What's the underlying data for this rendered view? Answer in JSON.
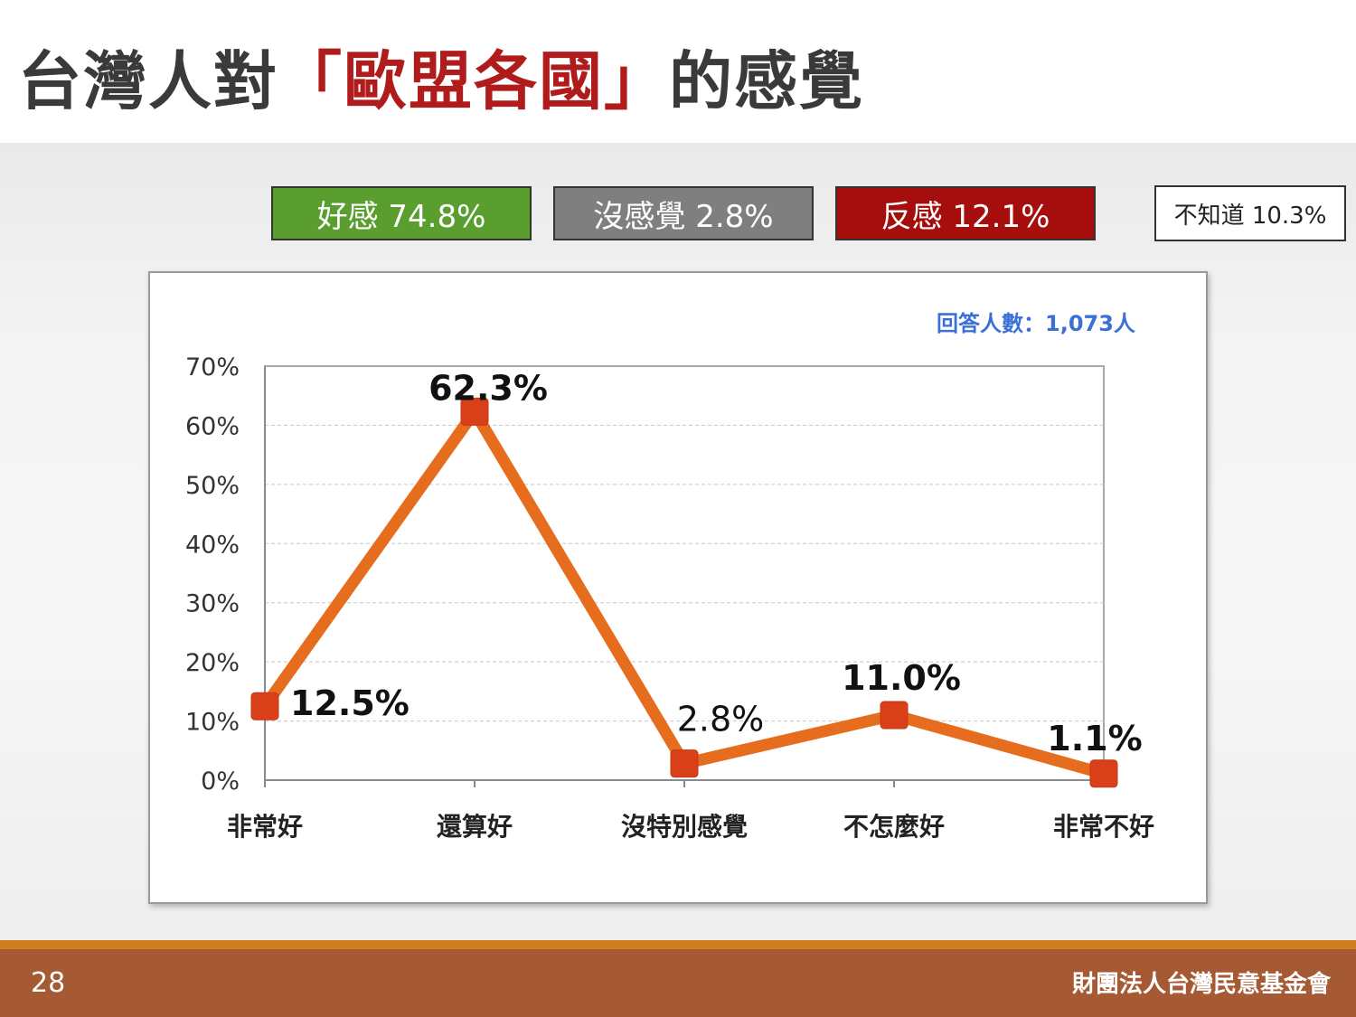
{
  "title": {
    "prefix": "台灣人對",
    "highlight": "「歐盟各國」",
    "suffix": "的感覺"
  },
  "summary": {
    "good": "好感 74.8%",
    "neutral": "沒感覺 2.8%",
    "bad": "反感 12.1%",
    "unknown": "不知道 10.3%"
  },
  "respondents": "回答人數：1,073人",
  "chart_data": {
    "type": "line",
    "categories": [
      "非常好",
      "還算好",
      "沒特別感覺",
      "不怎麼好",
      "非常不好"
    ],
    "values": [
      12.5,
      62.3,
      2.8,
      11.0,
      1.1
    ],
    "data_labels": [
      "12.5%",
      "62.3%",
      "2.8%",
      "11.0%",
      "1.1%"
    ],
    "yticks": [
      "0%",
      "10%",
      "20%",
      "30%",
      "40%",
      "50%",
      "60%",
      "70%"
    ],
    "ylim": [
      0,
      70
    ],
    "grid": true,
    "line_color": "#e66c1e",
    "marker_color": "#d9401a"
  },
  "footer": {
    "page": "28",
    "org": "財團法人台灣民意基金會"
  }
}
